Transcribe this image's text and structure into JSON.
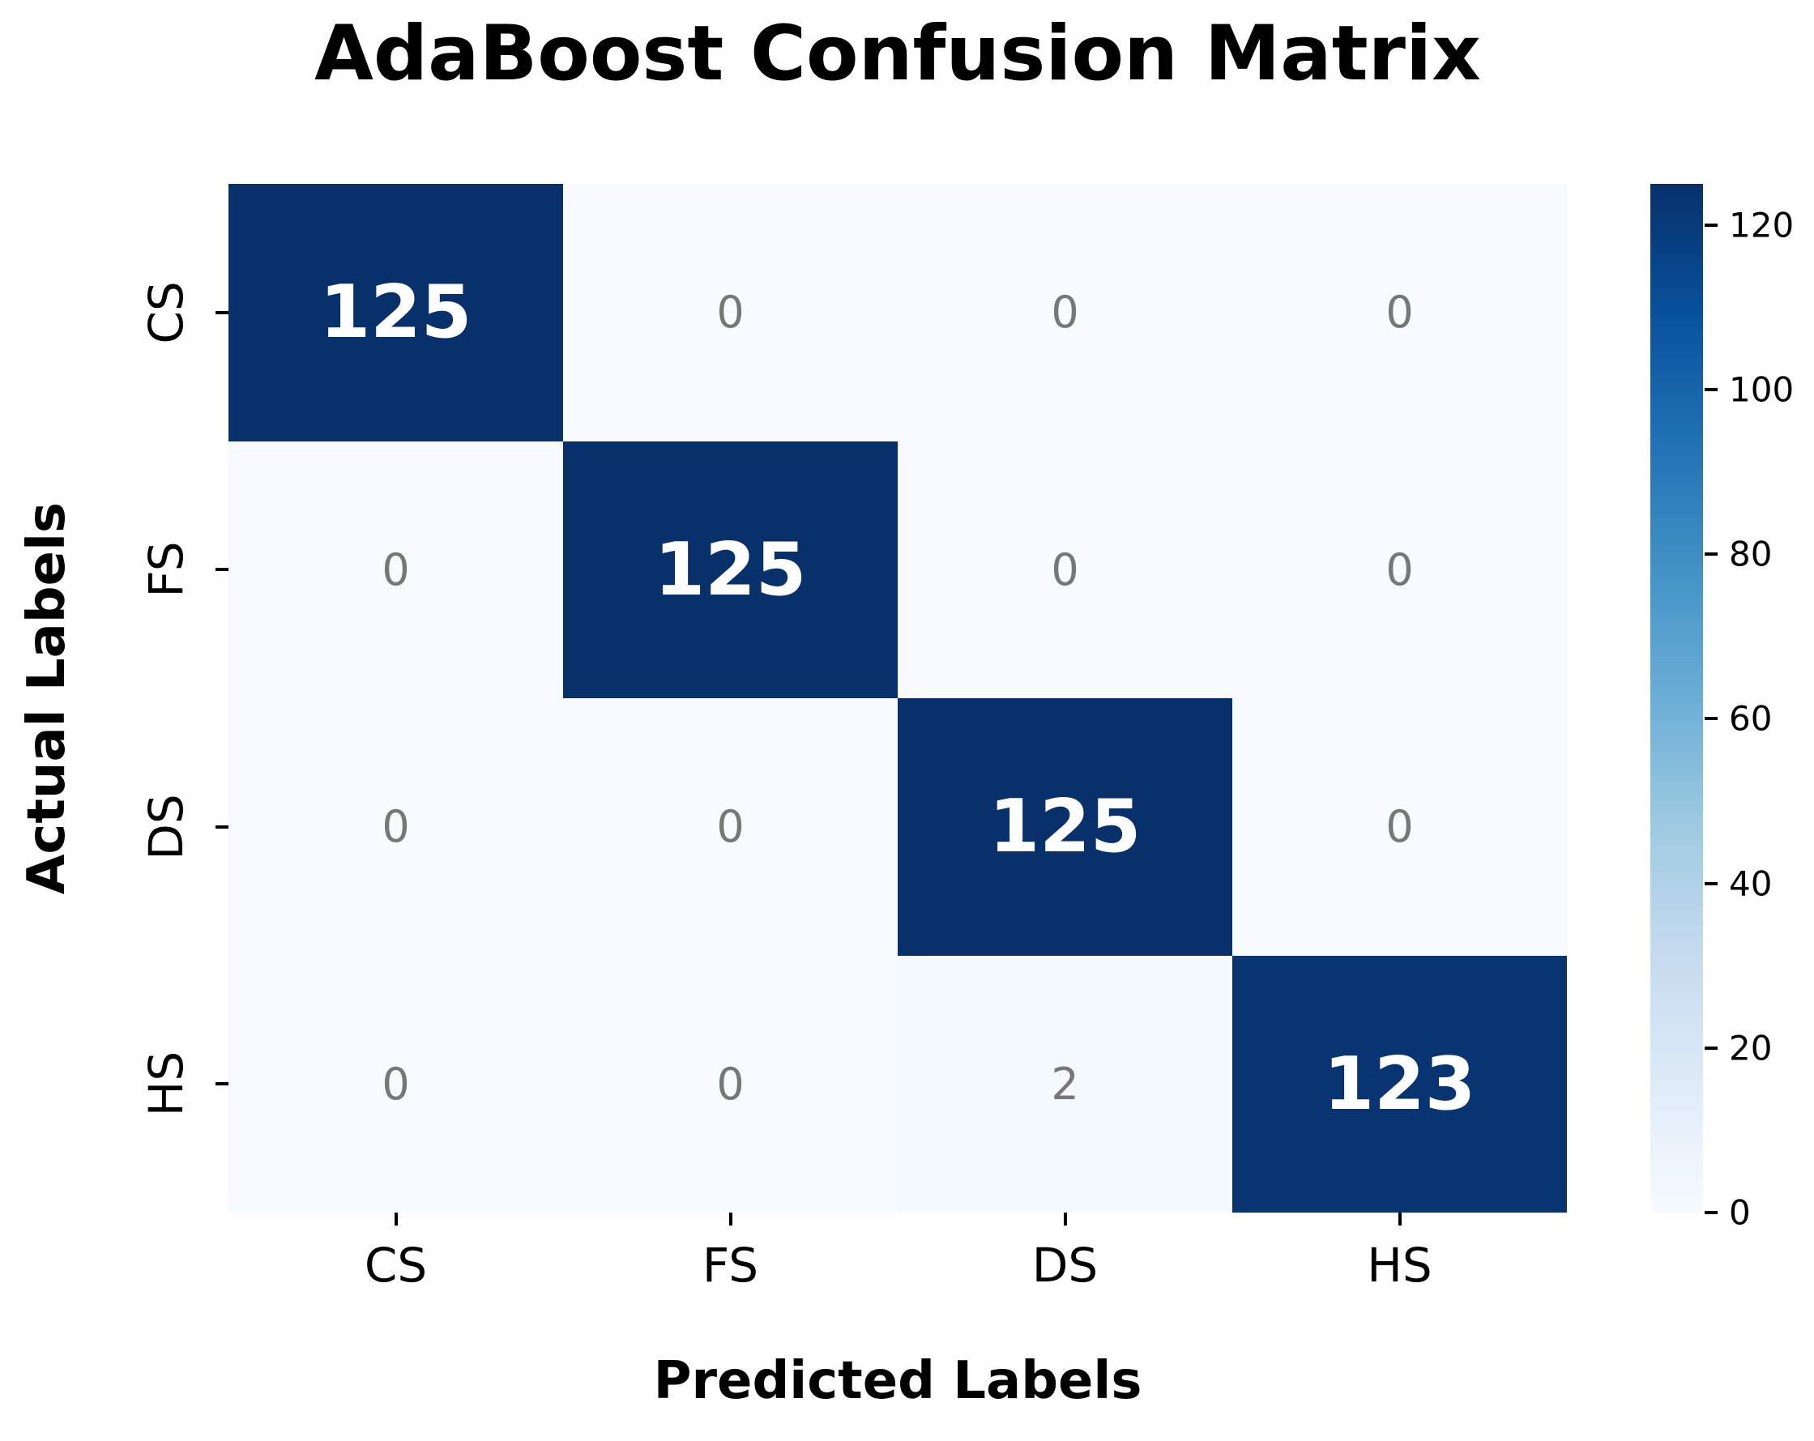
{
  "figure": {
    "title": "AdaBoost Confusion Matrix",
    "x_axis_label": "Predicted Labels",
    "y_axis_label": "Actual Labels"
  },
  "chart_data": {
    "type": "heatmap",
    "title": "AdaBoost Confusion Matrix",
    "xlabel": "Predicted Labels",
    "ylabel": "Actual Labels",
    "x_categories": [
      "CS",
      "FS",
      "DS",
      "HS"
    ],
    "y_categories": [
      "CS",
      "FS",
      "DS",
      "HS"
    ],
    "matrix": [
      [
        125,
        0,
        0,
        0
      ],
      [
        0,
        125,
        0,
        0
      ],
      [
        0,
        0,
        125,
        0
      ],
      [
        0,
        0,
        2,
        123
      ]
    ],
    "vmin": 0,
    "vmax": 125,
    "colorbar_ticks": [
      0,
      20,
      40,
      60,
      80,
      100,
      120
    ],
    "legend_position": "right-colorbar",
    "grid": false,
    "colormap": "Blues",
    "colormap_stops": [
      [
        0.0,
        "#f7fbff"
      ],
      [
        0.125,
        "#deebf7"
      ],
      [
        0.25,
        "#c6dbef"
      ],
      [
        0.375,
        "#9ecae1"
      ],
      [
        0.5,
        "#6baed6"
      ],
      [
        0.625,
        "#4292c6"
      ],
      [
        0.75,
        "#2171b5"
      ],
      [
        0.875,
        "#08519c"
      ],
      [
        1.0,
        "#08306b"
      ]
    ],
    "colors": {
      "annotation_on_dark": "#ffffff",
      "annotation_on_light": "#777777",
      "tick_color": "#000000",
      "background": "#ffffff"
    }
  }
}
